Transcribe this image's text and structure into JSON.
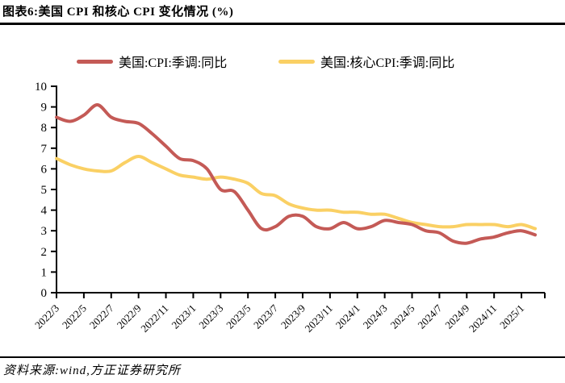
{
  "figure": {
    "title": "图表6:美国 CPI 和核心 CPI 变化情况 (%)"
  },
  "source": {
    "text": "资料来源:wind,方正证券研究所"
  },
  "colors": {
    "cpi_line": "#C45A56",
    "core_cpi_line": "#FAD064",
    "axis": "#000000",
    "rule": "#000000"
  },
  "chart_data": {
    "type": "line",
    "title": "",
    "xlabel": "",
    "ylabel": "",
    "ylim": [
      0,
      10
    ],
    "ytick_labels": [
      0,
      1,
      2,
      3,
      4,
      5,
      6,
      7,
      8,
      9,
      10
    ],
    "grid": false,
    "smooth": true,
    "legend_position": "top",
    "x": [
      "2022/3",
      "2022/4",
      "2022/5",
      "2022/6",
      "2022/7",
      "2022/8",
      "2022/9",
      "2022/10",
      "2022/11",
      "2022/12",
      "2023/1",
      "2023/2",
      "2023/3",
      "2023/4",
      "2023/5",
      "2023/6",
      "2023/7",
      "2023/8",
      "2023/9",
      "2023/10",
      "2023/11",
      "2023/12",
      "2024/1",
      "2024/2",
      "2024/3",
      "2024/4",
      "2024/5",
      "2024/6",
      "2024/7",
      "2024/8",
      "2024/9",
      "2024/10",
      "2024/11",
      "2024/12",
      "2025/1",
      "2025/2"
    ],
    "xtick_labels": [
      "2022/3",
      "2022/5",
      "2022/7",
      "2022/9",
      "2022/11",
      "2023/1",
      "2023/3",
      "2023/5",
      "2023/7",
      "2023/9",
      "2023/11",
      "2024/1",
      "2024/3",
      "2024/5",
      "2024/7",
      "2024/9",
      "2024/11",
      "2025/1"
    ],
    "series": [
      {
        "name": "美国:CPI:季调:同比",
        "color": "#C45A56",
        "values": [
          8.5,
          8.3,
          8.6,
          9.1,
          8.5,
          8.3,
          8.2,
          7.7,
          7.1,
          6.5,
          6.4,
          6.0,
          5.0,
          4.9,
          4.0,
          3.1,
          3.2,
          3.7,
          3.7,
          3.2,
          3.1,
          3.4,
          3.1,
          3.2,
          3.5,
          3.4,
          3.3,
          3.0,
          2.9,
          2.5,
          2.4,
          2.6,
          2.7,
          2.9,
          3.0,
          2.8
        ]
      },
      {
        "name": "美国:核心CPI:季调:同比",
        "color": "#FAD064",
        "values": [
          6.5,
          6.2,
          6.0,
          5.9,
          5.9,
          6.3,
          6.6,
          6.3,
          6.0,
          5.7,
          5.6,
          5.5,
          5.6,
          5.5,
          5.3,
          4.8,
          4.7,
          4.3,
          4.1,
          4.0,
          4.0,
          3.9,
          3.9,
          3.8,
          3.8,
          3.6,
          3.4,
          3.3,
          3.2,
          3.2,
          3.3,
          3.3,
          3.3,
          3.2,
          3.3,
          3.1
        ]
      }
    ]
  }
}
